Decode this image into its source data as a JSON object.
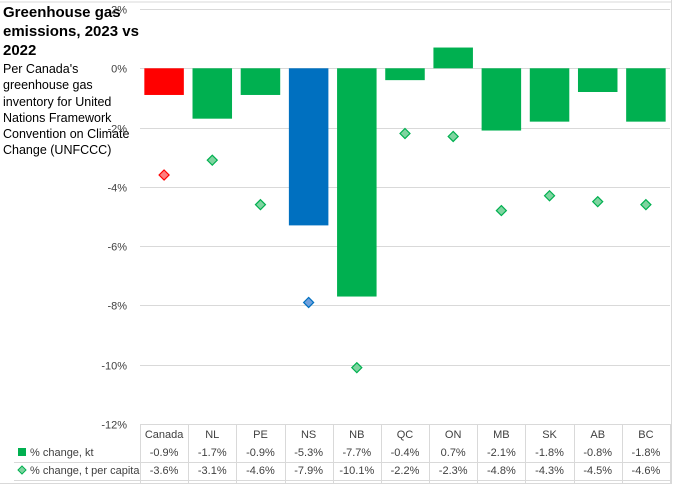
{
  "chart_data": {
    "type": "bar",
    "title": "Greenhouse gas emissions, 2023 vs 2022",
    "subtitle": "Per Canada's greenhouse gas inventory for United Nations Framework Convention on Climate Change (UNFCCC)",
    "xlabel": "",
    "ylabel": "",
    "ylim": [
      -12,
      2
    ],
    "yticks": [
      2,
      0,
      -2,
      -4,
      -6,
      -8,
      -10,
      -12
    ],
    "ytick_labels": [
      "2%",
      "0%",
      "-2%",
      "-4%",
      "-6%",
      "-8%",
      "-10%",
      "-12%"
    ],
    "grid": true,
    "legend_position": "bottom-table",
    "categories": [
      "Canada",
      "NL",
      "PE",
      "NS",
      "NB",
      "QC",
      "ON",
      "MB",
      "SK",
      "AB",
      "BC"
    ],
    "series": [
      {
        "name": "% change, kt",
        "type": "bar",
        "values": [
          -0.9,
          -1.7,
          -0.9,
          -5.3,
          -7.7,
          -0.4,
          0.7,
          -2.1,
          -1.8,
          -0.8,
          -1.8
        ],
        "labels": [
          "-0.9%",
          "-1.7%",
          "-0.9%",
          "-5.3%",
          "-7.7%",
          "-0.4%",
          "0.7%",
          "-2.1%",
          "-1.8%",
          "-0.8%",
          "-1.8%"
        ],
        "color": "#00B050",
        "point_colors": [
          "#FF0000",
          "#00B050",
          "#00B050",
          "#0070C0",
          "#00B050",
          "#00B050",
          "#00B050",
          "#00B050",
          "#00B050",
          "#00B050",
          "#00B050"
        ]
      },
      {
        "name": "% change, t per capita",
        "type": "scatter",
        "marker": "diamond",
        "values": [
          -3.6,
          -3.1,
          -4.6,
          -7.9,
          -10.1,
          -2.2,
          -2.3,
          -4.8,
          -4.3,
          -4.5,
          -4.6
        ],
        "labels": [
          "-3.6%",
          "-3.1%",
          "-4.6%",
          "-7.9%",
          "-10.1%",
          "-2.2%",
          "-2.3%",
          "-4.8%",
          "-4.3%",
          "-4.5%",
          "-4.6%"
        ],
        "color": "#7FD4A0",
        "edge_color": "#00B050",
        "point_colors": [
          "#FF7F7F",
          "#7FD4A0",
          "#7FD4A0",
          "#6FA0DC",
          "#7FD4A0",
          "#7FD4A0",
          "#7FD4A0",
          "#7FD4A0",
          "#7FD4A0",
          "#7FD4A0",
          "#7FD4A0"
        ],
        "point_edge_colors": [
          "#FF0000",
          "#00B050",
          "#00B050",
          "#0070C0",
          "#00B050",
          "#00B050",
          "#00B050",
          "#00B050",
          "#00B050",
          "#00B050",
          "#00B050"
        ]
      }
    ]
  },
  "colors": {
    "grid": "#d9d9d9",
    "text": "#404040"
  }
}
